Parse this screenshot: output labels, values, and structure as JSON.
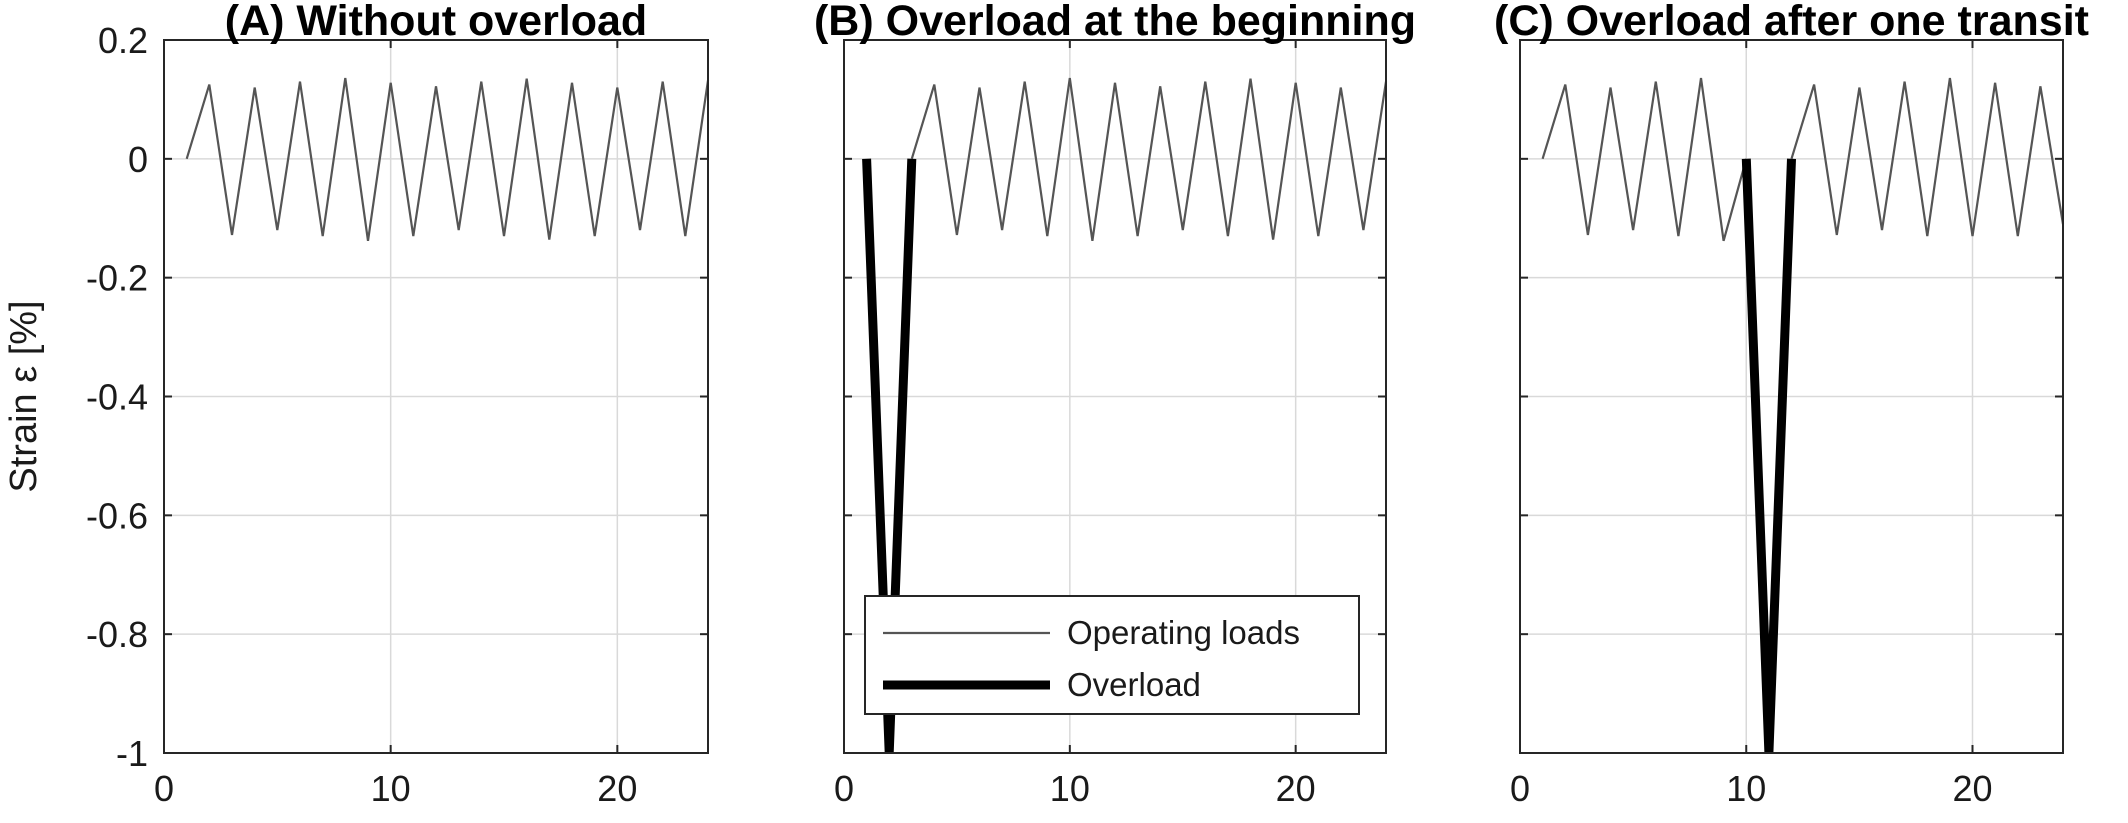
{
  "chart_data": [
    {
      "type": "line",
      "title": "(A) Without overload",
      "ylabel": "Strain ε [%]",
      "xlim": [
        0,
        24
      ],
      "ylim": [
        -1,
        0.2
      ],
      "xticks": [
        0,
        10,
        20
      ],
      "yticks": [
        0.2,
        0,
        -0.2,
        -0.4,
        -0.6,
        -0.8,
        -1
      ],
      "grid": true,
      "show_yticklabels": true,
      "legend": null,
      "series": [
        {
          "key": "operating",
          "x": [
            1,
            2,
            3,
            4,
            5,
            6,
            7,
            8,
            9,
            10,
            11,
            12,
            13,
            14,
            15,
            16,
            17,
            18,
            19,
            20,
            21,
            22,
            23,
            24
          ],
          "y": [
            0,
            0.125,
            -0.128,
            0.12,
            -0.12,
            0.13,
            -0.13,
            0.136,
            -0.138,
            0.128,
            -0.13,
            0.122,
            -0.12,
            0.13,
            -0.13,
            0.135,
            -0.136,
            0.128,
            -0.13,
            0.12,
            -0.12,
            0.13,
            -0.13,
            0.132
          ]
        }
      ]
    },
    {
      "type": "line",
      "title": "(B) Overload at the beginning",
      "xlim": [
        0,
        24
      ],
      "ylim": [
        -1,
        0.2
      ],
      "xticks": [
        0,
        10,
        20
      ],
      "yticks": [
        0.2,
        0,
        -0.2,
        -0.4,
        -0.6,
        -0.8,
        -1
      ],
      "grid": true,
      "show_yticklabels": false,
      "legend": {
        "position": "bottom-center",
        "entries": [
          {
            "label": "Operating loads",
            "series": "operating"
          },
          {
            "label": "Overload",
            "series": "overload"
          }
        ]
      },
      "series": [
        {
          "key": "operating",
          "name": "Operating loads",
          "x": [
            3,
            4,
            5,
            6,
            7,
            8,
            9,
            10,
            11,
            12,
            13,
            14,
            15,
            16,
            17,
            18,
            19,
            20,
            21,
            22,
            23,
            24
          ],
          "y": [
            0,
            0.125,
            -0.128,
            0.12,
            -0.12,
            0.13,
            -0.13,
            0.136,
            -0.138,
            0.128,
            -0.13,
            0.122,
            -0.12,
            0.13,
            -0.13,
            0.135,
            -0.136,
            0.128,
            -0.13,
            0.12,
            -0.12,
            0.13
          ]
        },
        {
          "key": "overload",
          "name": "Overload",
          "x": [
            1,
            2,
            3
          ],
          "y": [
            0,
            -1,
            0
          ]
        }
      ]
    },
    {
      "type": "line",
      "title": "(C) Overload after one transit",
      "xlim": [
        0,
        24
      ],
      "ylim": [
        -1,
        0.2
      ],
      "xticks": [
        0,
        10,
        20
      ],
      "yticks": [
        0.2,
        0,
        -0.2,
        -0.4,
        -0.6,
        -0.8,
        -1
      ],
      "grid": true,
      "show_yticklabels": false,
      "legend": null,
      "series": [
        {
          "key": "operating",
          "x": [
            1,
            2,
            3,
            4,
            5,
            6,
            7,
            8,
            9,
            10
          ],
          "y": [
            0,
            0.125,
            -0.128,
            0.12,
            -0.12,
            0.13,
            -0.13,
            0.136,
            -0.138,
            0
          ]
        },
        {
          "key": "operating",
          "x": [
            12,
            13,
            14,
            15,
            16,
            17,
            18,
            19,
            20,
            21,
            22,
            23,
            24
          ],
          "y": [
            0,
            0.125,
            -0.128,
            0.12,
            -0.12,
            0.13,
            -0.13,
            0.136,
            -0.13,
            0.128,
            -0.13,
            0.122,
            -0.11
          ]
        },
        {
          "key": "overload",
          "x": [
            10,
            11,
            12
          ],
          "y": [
            0,
            -1,
            0
          ]
        }
      ]
    }
  ]
}
